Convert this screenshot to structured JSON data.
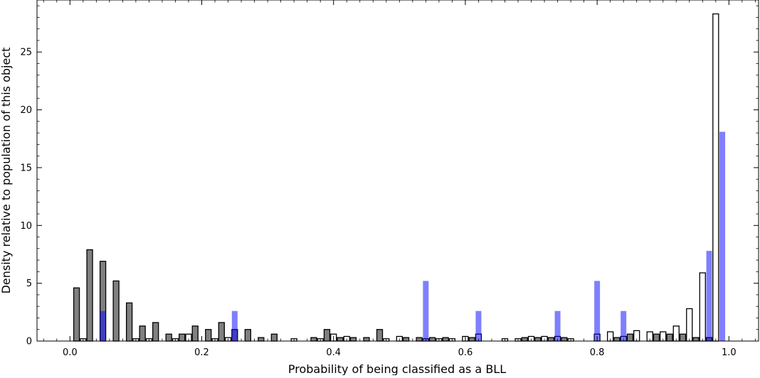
{
  "chart_data": {
    "type": "bar",
    "xlabel": "Probability of being classified as a BLL",
    "ylabel": "Density relative to population of this object",
    "xlim": [
      -0.05,
      1.045
    ],
    "ylim": [
      0,
      29.5
    ],
    "xticks": [
      0.0,
      0.2,
      0.4,
      0.6,
      0.8,
      1.0
    ],
    "xtick_labels": [
      "0.0",
      "0.2",
      "0.4",
      "0.6",
      "0.8",
      "1.0"
    ],
    "yticks": [
      0,
      5,
      10,
      15,
      20,
      25
    ],
    "ytick_labels": [
      "0",
      "5",
      "10",
      "15",
      "20",
      "25"
    ],
    "bin_width": 0.02,
    "series": [
      {
        "color": "#808080",
        "edge": "#000000",
        "alpha": 1,
        "bars": [
          [
            0.01,
            4.6
          ],
          [
            0.03,
            7.9
          ],
          [
            0.05,
            6.9
          ],
          [
            0.07,
            5.2
          ],
          [
            0.09,
            3.3
          ],
          [
            0.11,
            1.3
          ],
          [
            0.13,
            1.6
          ],
          [
            0.15,
            0.6
          ],
          [
            0.17,
            0.6
          ],
          [
            0.19,
            1.3
          ],
          [
            0.21,
            1.0
          ],
          [
            0.23,
            1.6
          ],
          [
            0.25,
            1.0
          ],
          [
            0.27,
            1.0
          ],
          [
            0.29,
            0.3
          ],
          [
            0.31,
            0.6
          ],
          [
            0.37,
            0.3
          ],
          [
            0.39,
            1.0
          ],
          [
            0.41,
            0.3
          ],
          [
            0.43,
            0.3
          ],
          [
            0.45,
            0.3
          ],
          [
            0.47,
            1.0
          ],
          [
            0.51,
            0.3
          ],
          [
            0.53,
            0.3
          ],
          [
            0.55,
            0.3
          ],
          [
            0.57,
            0.3
          ],
          [
            0.61,
            0.3
          ],
          [
            0.69,
            0.3
          ],
          [
            0.71,
            0.3
          ],
          [
            0.73,
            0.3
          ],
          [
            0.75,
            0.3
          ],
          [
            0.83,
            0.3
          ],
          [
            0.85,
            0.6
          ],
          [
            0.89,
            0.6
          ],
          [
            0.91,
            0.6
          ],
          [
            0.93,
            0.6
          ],
          [
            0.95,
            0.3
          ],
          [
            0.97,
            0.3
          ]
        ]
      },
      {
        "color": "#ffffff",
        "edge": "#000000",
        "alpha": 1,
        "bars": [
          [
            0.02,
            0.2
          ],
          [
            0.1,
            0.2
          ],
          [
            0.12,
            0.2
          ],
          [
            0.16,
            0.2
          ],
          [
            0.18,
            0.6
          ],
          [
            0.22,
            0.2
          ],
          [
            0.24,
            0.3
          ],
          [
            0.34,
            0.2
          ],
          [
            0.38,
            0.2
          ],
          [
            0.4,
            0.6
          ],
          [
            0.42,
            0.4
          ],
          [
            0.48,
            0.2
          ],
          [
            0.5,
            0.4
          ],
          [
            0.54,
            0.2
          ],
          [
            0.56,
            0.2
          ],
          [
            0.58,
            0.2
          ],
          [
            0.6,
            0.4
          ],
          [
            0.62,
            0.6
          ],
          [
            0.66,
            0.2
          ],
          [
            0.68,
            0.2
          ],
          [
            0.7,
            0.4
          ],
          [
            0.72,
            0.4
          ],
          [
            0.74,
            0.4
          ],
          [
            0.76,
            0.2
          ],
          [
            0.8,
            0.6
          ],
          [
            0.82,
            0.8
          ],
          [
            0.84,
            0.4
          ],
          [
            0.86,
            0.9
          ],
          [
            0.88,
            0.8
          ],
          [
            0.9,
            0.8
          ],
          [
            0.92,
            1.3
          ],
          [
            0.94,
            2.8
          ],
          [
            0.96,
            5.9
          ],
          [
            0.98,
            28.3
          ]
        ]
      },
      {
        "color": "#0000ff",
        "edge": "none",
        "alpha": 0.5,
        "bars": [
          [
            0.05,
            2.6
          ],
          [
            0.25,
            2.6
          ],
          [
            0.54,
            5.2
          ],
          [
            0.62,
            2.6
          ],
          [
            0.74,
            2.6
          ],
          [
            0.8,
            5.2
          ],
          [
            0.84,
            2.6
          ],
          [
            0.97,
            7.8
          ],
          [
            0.99,
            18.1
          ]
        ]
      }
    ]
  }
}
